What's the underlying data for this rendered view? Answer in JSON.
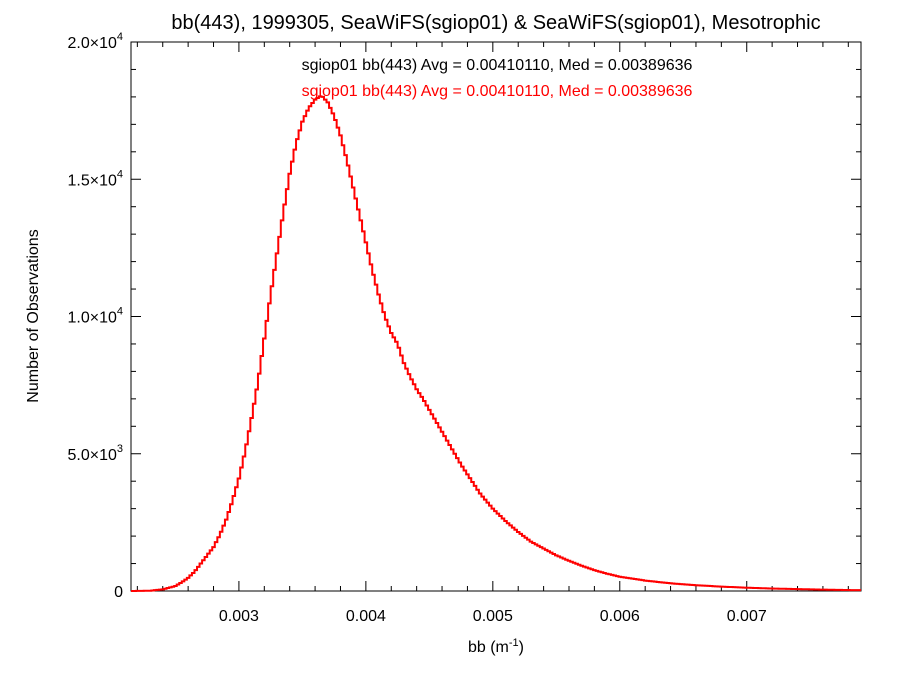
{
  "chart_data": {
    "type": "line",
    "step": true,
    "title": "bb(443), 1999305, SeaWiFS(sgiop01) & SeaWiFS(sgiop01), Mesotrophic",
    "xlabel": "bb (m",
    "xlabel_sup": "-1",
    "xlabel_close": ")",
    "ylabel": "Number of Observations",
    "xlim": [
      0.00215,
      0.0079
    ],
    "ylim": [
      0,
      20000
    ],
    "x_ticks": [
      {
        "value": 0.003,
        "label": "0.003"
      },
      {
        "value": 0.004,
        "label": "0.004"
      },
      {
        "value": 0.005,
        "label": "0.005"
      },
      {
        "value": 0.006,
        "label": "0.006"
      },
      {
        "value": 0.007,
        "label": "0.007"
      }
    ],
    "y_ticks": [
      {
        "value": 0,
        "mant": "0",
        "exp": ""
      },
      {
        "value": 5000,
        "mant": "5.0×10",
        "exp": "3"
      },
      {
        "value": 10000,
        "mant": "1.0×10",
        "exp": "4"
      },
      {
        "value": 15000,
        "mant": "1.5×10",
        "exp": "4"
      },
      {
        "value": 20000,
        "mant": "2.0×10",
        "exp": "4"
      }
    ],
    "annotations": [
      {
        "text": "sgiop01 bb(443) Avg = 0.00410110, Med = 0.00389636",
        "color": "#000000"
      },
      {
        "text": "sgiop01 bb(443) Avg = 0.00410110, Med = 0.00389636",
        "color": "#ff0000"
      }
    ],
    "series": [
      {
        "color": "#ff0000",
        "points": [
          [
            0.00215,
            0
          ],
          [
            0.0023,
            10
          ],
          [
            0.0024,
            60
          ],
          [
            0.0025,
            180
          ],
          [
            0.00255,
            320
          ],
          [
            0.0026,
            480
          ],
          [
            0.00265,
            700
          ],
          [
            0.0027,
            1000
          ],
          [
            0.00275,
            1300
          ],
          [
            0.0028,
            1600
          ],
          [
            0.00285,
            2050
          ],
          [
            0.0029,
            2600
          ],
          [
            0.00295,
            3300
          ],
          [
            0.003,
            4100
          ],
          [
            0.00305,
            5100
          ],
          [
            0.0031,
            6300
          ],
          [
            0.00315,
            7600
          ],
          [
            0.0032,
            9200
          ],
          [
            0.00325,
            10800
          ],
          [
            0.0033,
            12300
          ],
          [
            0.00335,
            13800
          ],
          [
            0.0034,
            15200
          ],
          [
            0.00345,
            16300
          ],
          [
            0.0035,
            17100
          ],
          [
            0.00355,
            17600
          ],
          [
            0.0036,
            17900
          ],
          [
            0.00365,
            18050
          ],
          [
            0.0037,
            17800
          ],
          [
            0.00375,
            17300
          ],
          [
            0.0038,
            16600
          ],
          [
            0.00385,
            15700
          ],
          [
            0.0039,
            14700
          ],
          [
            0.00395,
            13700
          ],
          [
            0.004,
            12700
          ],
          [
            0.00405,
            11700
          ],
          [
            0.0041,
            10800
          ],
          [
            0.00415,
            10000
          ],
          [
            0.0042,
            9400
          ],
          [
            0.00425,
            9000
          ],
          [
            0.0043,
            8300
          ],
          [
            0.00435,
            7800
          ],
          [
            0.0044,
            7350
          ],
          [
            0.00445,
            7000
          ],
          [
            0.0045,
            6600
          ],
          [
            0.00455,
            6200
          ],
          [
            0.0046,
            5800
          ],
          [
            0.00465,
            5400
          ],
          [
            0.0047,
            5000
          ],
          [
            0.00475,
            4600
          ],
          [
            0.0048,
            4250
          ],
          [
            0.00485,
            3900
          ],
          [
            0.0049,
            3550
          ],
          [
            0.005,
            3000
          ],
          [
            0.0051,
            2550
          ],
          [
            0.0052,
            2150
          ],
          [
            0.0053,
            1800
          ],
          [
            0.0054,
            1550
          ],
          [
            0.0055,
            1300
          ],
          [
            0.0056,
            1100
          ],
          [
            0.0057,
            920
          ],
          [
            0.0058,
            760
          ],
          [
            0.0059,
            630
          ],
          [
            0.006,
            520
          ],
          [
            0.0062,
            380
          ],
          [
            0.0064,
            280
          ],
          [
            0.0066,
            210
          ],
          [
            0.0068,
            160
          ],
          [
            0.007,
            120
          ],
          [
            0.0072,
            90
          ],
          [
            0.0074,
            70
          ],
          [
            0.0076,
            50
          ],
          [
            0.0078,
            35
          ],
          [
            0.0079,
            30
          ]
        ]
      }
    ]
  }
}
